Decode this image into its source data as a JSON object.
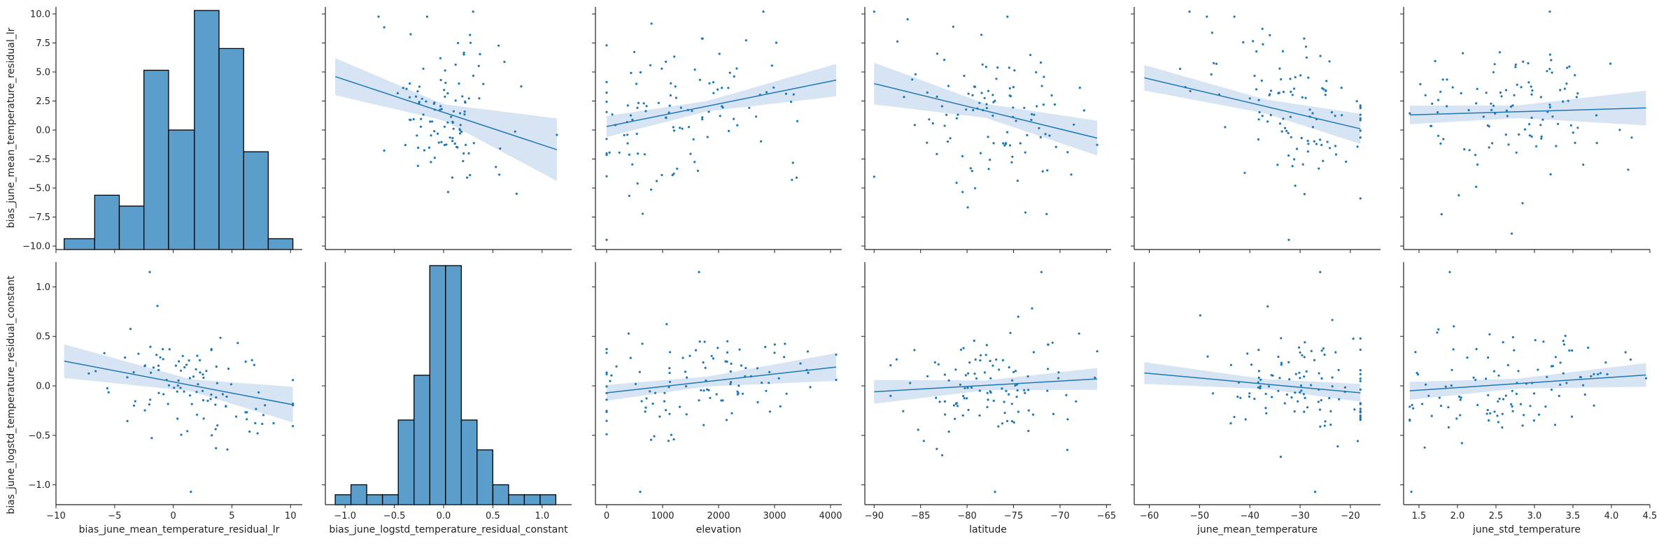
{
  "colors": {
    "primary": "#1f77b4",
    "bar_fill": "#5b9dcb",
    "band": "#c9dbef",
    "axis": "#222222"
  },
  "chart_data": {
    "type": "pairgrid",
    "rows": [
      "bias_june_mean_temperature_residual_lr",
      "bias_june_logstd_temperature_residual_constant"
    ],
    "columns": [
      {
        "label": "bias_june_mean_temperature_residual_lr",
        "xlim": [
          -10,
          11
        ],
        "ticks": [
          -10,
          -5,
          0,
          5,
          10
        ],
        "tick_labels": [
          "−10",
          "−5",
          "0",
          "5",
          "10"
        ]
      },
      {
        "label": "bias_june_logstd_temperature_residual_constant",
        "xlim": [
          -1.2,
          1.3
        ],
        "ticks": [
          -1.0,
          -0.5,
          0.0,
          0.5,
          1.0
        ],
        "tick_labels": [
          "−1.0",
          "−0.5",
          "0.0",
          "0.5",
          "1.0"
        ]
      },
      {
        "label": "elevation",
        "xlim": [
          -200,
          4200
        ],
        "ticks": [
          0,
          1000,
          2000,
          3000,
          4000
        ],
        "tick_labels": [
          "0",
          "1000",
          "2000",
          "3000",
          "4000"
        ]
      },
      {
        "label": "latitude",
        "xlim": [
          -91,
          -64.5
        ],
        "ticks": [
          -90,
          -85,
          -80,
          -75,
          -70,
          -65
        ],
        "tick_labels": [
          "−90",
          "−85",
          "−80",
          "−75",
          "−70",
          "−65"
        ]
      },
      {
        "label": "june_mean_temperature",
        "xlim": [
          -63,
          -14
        ],
        "ticks": [
          -60,
          -50,
          -40,
          -30,
          -20
        ],
        "tick_labels": [
          "−60",
          "−50",
          "−40",
          "−30",
          "−20"
        ]
      },
      {
        "label": "june_std_temperature",
        "xlim": [
          1.3,
          4.5
        ],
        "ticks": [
          1.5,
          2.0,
          2.5,
          3.0,
          3.5,
          4.0,
          4.5
        ],
        "tick_labels": [
          "1.5",
          "2.0",
          "2.5",
          "3.0",
          "3.5",
          "4.0",
          "4.5"
        ]
      }
    ],
    "row_axes": [
      {
        "ylim": [
          -10.3,
          10.6
        ],
        "ticks": [
          -10.0,
          -7.5,
          -5.0,
          -2.5,
          0.0,
          2.5,
          5.0,
          7.5,
          10.0
        ],
        "tick_labels": [
          "−10.0",
          "−7.5",
          "−5.0",
          "−2.5",
          "0.0",
          "2.5",
          "5.0",
          "7.5",
          "10.0"
        ]
      },
      {
        "ylim": [
          -1.2,
          1.25
        ],
        "ticks": [
          -1.0,
          -0.5,
          0.0,
          0.5,
          1.0
        ],
        "tick_labels": [
          "−1.0",
          "−0.5",
          "0.0",
          "0.5",
          "1.0"
        ]
      }
    ],
    "histograms": [
      {
        "row": 0,
        "col": 0,
        "bin_edges": [
          -9.3,
          -6.7,
          -4.6,
          -2.5,
          -0.4,
          1.8,
          3.9,
          6.0,
          8.1,
          10.2
        ],
        "counts": [
          2,
          10,
          8,
          33,
          22,
          44,
          37,
          18,
          2
        ]
      },
      {
        "row": 1,
        "col": 1,
        "bin_edges": [
          -1.1,
          -0.94,
          -0.78,
          -0.62,
          -0.46,
          -0.3,
          -0.14,
          0.02,
          0.18,
          0.34,
          0.5,
          0.66,
          0.82,
          0.98,
          1.14
        ],
        "counts": [
          2,
          4,
          2,
          2,
          17,
          26,
          48,
          48,
          17,
          11,
          4,
          2,
          2,
          2
        ]
      }
    ],
    "regressions": [
      {
        "row": 0,
        "col": 1,
        "line": [
          [
            -1.1,
            4.6
          ],
          [
            1.15,
            -1.7
          ]
        ],
        "band_hw": [
          [
            -1.1,
            1.6
          ],
          [
            0.0,
            0.7
          ],
          [
            1.15,
            2.7
          ]
        ]
      },
      {
        "row": 0,
        "col": 2,
        "line": [
          [
            0,
            0.3
          ],
          [
            4100,
            4.3
          ]
        ],
        "band_hw": [
          [
            0,
            0.9
          ],
          [
            1800,
            0.45
          ],
          [
            4100,
            1.4
          ]
        ]
      },
      {
        "row": 0,
        "col": 3,
        "line": [
          [
            -90,
            4.0
          ],
          [
            -66,
            -0.7
          ]
        ],
        "band_hw": [
          [
            -90,
            1.8
          ],
          [
            -78,
            0.6
          ],
          [
            -66,
            1.5
          ]
        ]
      },
      {
        "row": 0,
        "col": 4,
        "line": [
          [
            -61,
            4.5
          ],
          [
            -18,
            0.1
          ]
        ],
        "band_hw": [
          [
            -61,
            1.1
          ],
          [
            -37,
            0.6
          ],
          [
            -18,
            1.3
          ]
        ]
      },
      {
        "row": 0,
        "col": 5,
        "line": [
          [
            1.38,
            1.3
          ],
          [
            4.45,
            1.9
          ]
        ],
        "band_hw": [
          [
            1.38,
            0.8
          ],
          [
            2.8,
            0.55
          ],
          [
            4.45,
            1.5
          ]
        ]
      },
      {
        "row": 1,
        "col": 0,
        "line": [
          [
            -9.3,
            0.25
          ],
          [
            10.2,
            -0.19
          ]
        ],
        "band_hw": [
          [
            -9.3,
            0.17
          ],
          [
            1.5,
            0.06
          ],
          [
            10.2,
            0.18
          ]
        ]
      },
      {
        "row": 1,
        "col": 2,
        "line": [
          [
            0,
            -0.07
          ],
          [
            4100,
            0.19
          ]
        ],
        "band_hw": [
          [
            0,
            0.08
          ],
          [
            1800,
            0.05
          ],
          [
            4100,
            0.14
          ]
        ]
      },
      {
        "row": 1,
        "col": 3,
        "line": [
          [
            -90,
            -0.06
          ],
          [
            -66,
            0.07
          ]
        ],
        "band_hw": [
          [
            -90,
            0.12
          ],
          [
            -78,
            0.05
          ],
          [
            -66,
            0.11
          ]
        ]
      },
      {
        "row": 1,
        "col": 4,
        "line": [
          [
            -61,
            0.13
          ],
          [
            -18,
            -0.07
          ]
        ],
        "band_hw": [
          [
            -61,
            0.11
          ],
          [
            -37,
            0.05
          ],
          [
            -18,
            0.09
          ]
        ]
      },
      {
        "row": 1,
        "col": 5,
        "line": [
          [
            1.38,
            -0.05
          ],
          [
            4.45,
            0.11
          ]
        ],
        "band_hw": [
          [
            1.38,
            0.09
          ],
          [
            2.8,
            0.05
          ],
          [
            4.45,
            0.12
          ]
        ]
      }
    ],
    "scatter": {
      "seed": 7,
      "n": 110,
      "note_visible_outliers": [
        {
          "row": 0,
          "col": 1,
          "x": 0.3,
          "y": 10.2
        },
        {
          "row": 0,
          "col": 2,
          "x": 2800,
          "y": 10.2
        },
        {
          "row": 0,
          "col": 3,
          "x": -90,
          "y": 10.2
        },
        {
          "row": 0,
          "col": 4,
          "x": -52,
          "y": 10.2
        },
        {
          "row": 0,
          "col": 5,
          "x": 3.2,
          "y": 10.2
        },
        {
          "row": 1,
          "col": 0,
          "x": -2,
          "y": 1.15
        },
        {
          "row": 1,
          "col": 2,
          "x": 1650,
          "y": 1.15
        },
        {
          "row": 1,
          "col": 3,
          "x": -72,
          "y": 1.15
        },
        {
          "row": 1,
          "col": 4,
          "x": -26,
          "y": 1.15
        },
        {
          "row": 1,
          "col": 5,
          "x": 1.9,
          "y": 1.15
        },
        {
          "row": 1,
          "col": 0,
          "x": 1.5,
          "y": -1.07
        },
        {
          "row": 1,
          "col": 2,
          "x": 600,
          "y": -1.07
        },
        {
          "row": 1,
          "col": 3,
          "x": -77,
          "y": -1.07
        },
        {
          "row": 1,
          "col": 4,
          "x": -27,
          "y": -1.07
        },
        {
          "row": 1,
          "col": 5,
          "x": 1.4,
          "y": -1.07
        }
      ]
    }
  }
}
